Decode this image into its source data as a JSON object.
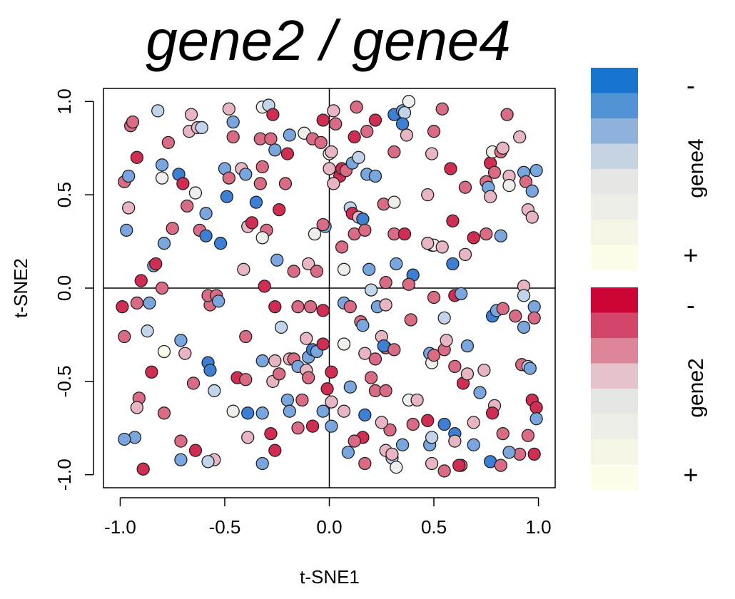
{
  "chart_data": {
    "type": "scatter",
    "title": "gene2 / gene4",
    "xlabel": "t-SNE1",
    "ylabel": "t-SNE2",
    "xlim": [
      -1.08,
      1.08
    ],
    "ylim": [
      -1.07,
      1.07
    ],
    "xticks": [
      "-1.0",
      "-0.5",
      "0.0",
      "0.5",
      "1.0"
    ],
    "xtick_values": [
      -1.0,
      -0.5,
      0.0,
      0.5,
      1.0
    ],
    "yticks": [
      "-1.0",
      "-0.5",
      "0.0",
      "0.5",
      "1.0"
    ],
    "ytick_values": [
      -1.0,
      -0.5,
      0.0,
      0.5,
      1.0
    ],
    "reference_lines": {
      "x": 0,
      "y": 0
    },
    "grid": false,
    "palette": {
      "red_dark": "#d12d52",
      "red_mid": "#da6b84",
      "red_light": "#e8b5c3",
      "blue_dark": "#3d7fd4",
      "blue_mid": "#79a6df",
      "blue_light": "#c2d4ea",
      "neutral": "#eeeeea",
      "cream": "#fafae8"
    },
    "legend": {
      "gene4": {
        "label": "gene4",
        "minus": "-",
        "plus": "+",
        "colors": [
          "#1874cd",
          "#5293d6",
          "#8fb2dc",
          "#c6d3e1",
          "#e6e6e4",
          "#eeeee8",
          "#f5f5e6",
          "#fdfde9"
        ]
      },
      "gene2": {
        "label": "gene2",
        "minus": "-",
        "plus": "+",
        "colors": [
          "#cd0537",
          "#d2466a",
          "#dd8599",
          "#e4c3cb",
          "#e6e6e4",
          "#eeeee8",
          "#f5f5e6",
          "#fdfde9"
        ]
      }
    },
    "points": [
      [
        -0.98,
        0.57,
        "rm"
      ],
      [
        -0.96,
        0.6,
        "bm"
      ],
      [
        -0.95,
        0.87,
        "rm"
      ],
      [
        -0.94,
        0.89,
        "rm"
      ],
      [
        -0.96,
        0.43,
        "rl"
      ],
      [
        -0.97,
        0.31,
        "bm"
      ],
      [
        -0.92,
        0.7,
        "rd"
      ],
      [
        -0.82,
        0.95,
        "bl"
      ],
      [
        -0.8,
        0.66,
        "bm"
      ],
      [
        -0.8,
        0.59,
        "nl"
      ],
      [
        -0.77,
        0.78,
        "rm"
      ],
      [
        -0.72,
        0.61,
        "bd"
      ],
      [
        -0.7,
        0.56,
        "rd"
      ],
      [
        -0.66,
        0.93,
        "rl"
      ],
      [
        -0.67,
        0.84,
        "rl"
      ],
      [
        -0.63,
        0.86,
        "rl"
      ],
      [
        -0.61,
        0.86,
        "bl"
      ],
      [
        -0.64,
        0.51,
        "nl"
      ],
      [
        -0.59,
        0.4,
        "bm"
      ],
      [
        -0.62,
        0.31,
        "rm"
      ],
      [
        -0.59,
        0.28,
        "bd"
      ],
      [
        -0.52,
        0.24,
        "bd"
      ],
      [
        -0.5,
        0.64,
        "bm"
      ],
      [
        -0.48,
        0.59,
        "rm"
      ],
      [
        -0.49,
        0.49,
        "bd"
      ],
      [
        -0.46,
        0.81,
        "rm"
      ],
      [
        -0.46,
        0.89,
        "bm"
      ],
      [
        -0.48,
        0.96,
        "rl"
      ],
      [
        -0.42,
        0.64,
        "rl"
      ],
      [
        -0.4,
        0.61,
        "bm"
      ],
      [
        -0.32,
        0.97,
        "nl"
      ],
      [
        -0.29,
        0.98,
        "bl"
      ],
      [
        -0.27,
        0.93,
        "rd"
      ],
      [
        -0.33,
        0.8,
        "rm"
      ],
      [
        -0.28,
        0.8,
        "rm"
      ],
      [
        -0.26,
        0.74,
        "bm"
      ],
      [
        -0.2,
        0.72,
        "rd"
      ],
      [
        -0.19,
        0.82,
        "bm"
      ],
      [
        -0.12,
        0.83,
        "nl"
      ],
      [
        -0.08,
        0.8,
        "rm"
      ],
      [
        -0.04,
        0.78,
        "rm"
      ],
      [
        -0.03,
        0.9,
        "rd"
      ],
      [
        -0.32,
        0.65,
        "rm"
      ],
      [
        -0.33,
        0.56,
        "rm"
      ],
      [
        -0.35,
        0.46,
        "bd"
      ],
      [
        -0.24,
        0.42,
        "rd"
      ],
      [
        -0.3,
        0.31,
        "rm"
      ],
      [
        -0.39,
        0.33,
        "rl"
      ],
      [
        -0.32,
        0.27,
        "nl"
      ],
      [
        -0.37,
        0.35,
        "rd"
      ],
      [
        -0.25,
        0.15,
        "bm"
      ],
      [
        -0.21,
        0.56,
        "rm"
      ],
      [
        -0.07,
        0.29,
        "nl"
      ],
      [
        -0.02,
        0.33,
        "bm"
      ],
      [
        -0.17,
        0.09,
        "rm"
      ],
      [
        -0.1,
        0.13,
        "rl"
      ],
      [
        -0.06,
        0.09,
        "rm"
      ],
      [
        -0.41,
        0.1,
        "rl"
      ],
      [
        -0.31,
        0.01,
        "rd"
      ],
      [
        -0.75,
        0.32,
        "rm"
      ],
      [
        -0.79,
        0.24,
        "bm"
      ],
      [
        -0.84,
        0.12,
        "bm"
      ],
      [
        -0.83,
        0.13,
        "rd"
      ],
      [
        -0.9,
        0.04,
        "rd"
      ],
      [
        -0.8,
        0.0,
        "rm"
      ],
      [
        -0.68,
        0.44,
        "rm"
      ],
      [
        0.02,
        0.95,
        "rl"
      ],
      [
        0.03,
        0.88,
        "rm"
      ],
      [
        0.0,
        0.72,
        "nl"
      ],
      [
        0.01,
        0.73,
        "rl"
      ],
      [
        0.0,
        0.64,
        "rl"
      ],
      [
        0.05,
        0.6,
        "rd"
      ],
      [
        0.06,
        0.64,
        "rd"
      ],
      [
        0.02,
        0.56,
        "rl"
      ],
      [
        0.08,
        0.63,
        "rm"
      ],
      [
        0.12,
        0.81,
        "rd"
      ],
      [
        0.13,
        0.97,
        "rm"
      ],
      [
        0.18,
        0.84,
        "rm"
      ],
      [
        0.22,
        0.9,
        "rd"
      ],
      [
        0.11,
        0.67,
        "bm"
      ],
      [
        0.14,
        0.7,
        "bl"
      ],
      [
        0.18,
        0.61,
        "bm"
      ],
      [
        0.22,
        0.6,
        "bm"
      ],
      [
        0.1,
        0.43,
        "bl"
      ],
      [
        0.11,
        0.4,
        "rd"
      ],
      [
        0.14,
        0.38,
        "rl"
      ],
      [
        0.16,
        0.37,
        "bd"
      ],
      [
        0.12,
        0.29,
        "rm"
      ],
      [
        0.17,
        0.31,
        "rm"
      ],
      [
        0.06,
        0.22,
        "rm"
      ],
      [
        -0.03,
        0.34,
        "rm"
      ],
      [
        0.07,
        0.1,
        "nl"
      ],
      [
        0.19,
        0.1,
        "bm"
      ],
      [
        0.31,
        0.93,
        "bd"
      ],
      [
        0.35,
        0.95,
        "bm"
      ],
      [
        0.36,
        0.94,
        "bl"
      ],
      [
        0.38,
        1.0,
        "nl"
      ],
      [
        0.35,
        0.88,
        "bd"
      ],
      [
        0.37,
        0.82,
        "rl"
      ],
      [
        0.31,
        0.73,
        "rm"
      ],
      [
        0.47,
        0.5,
        "rl"
      ],
      [
        0.49,
        0.23,
        "rm"
      ],
      [
        0.5,
        0.23,
        "nl"
      ],
      [
        0.54,
        0.22,
        "rl"
      ],
      [
        0.47,
        0.24,
        "rl"
      ],
      [
        0.31,
        0.29,
        "rm"
      ],
      [
        0.36,
        0.29,
        "rd"
      ],
      [
        0.32,
        0.13,
        "bm"
      ],
      [
        0.4,
        0.07,
        "bd"
      ],
      [
        0.38,
        0.02,
        "rm"
      ],
      [
        0.27,
        0.03,
        "rm"
      ],
      [
        0.26,
        0.45,
        "rm"
      ],
      [
        0.31,
        0.46,
        "nl"
      ],
      [
        0.5,
        0.84,
        "rm"
      ],
      [
        0.54,
        0.96,
        "rm"
      ],
      [
        0.49,
        0.72,
        "rl"
      ],
      [
        0.58,
        0.64,
        "rd"
      ],
      [
        0.59,
        0.36,
        "rd"
      ],
      [
        0.59,
        0.13,
        "bd"
      ],
      [
        0.65,
        0.54,
        "rm"
      ],
      [
        0.65,
        0.18,
        "rl"
      ],
      [
        0.69,
        0.27,
        "rd"
      ],
      [
        0.75,
        0.57,
        "rm"
      ],
      [
        0.76,
        0.54,
        "bm"
      ],
      [
        0.77,
        0.49,
        "rl"
      ],
      [
        0.77,
        0.67,
        "rd"
      ],
      [
        0.78,
        0.73,
        "nl"
      ],
      [
        0.79,
        0.62,
        "rm"
      ],
      [
        0.82,
        0.73,
        "rm"
      ],
      [
        0.83,
        0.75,
        "rl"
      ],
      [
        0.85,
        0.93,
        "rm"
      ],
      [
        0.86,
        0.6,
        "rl"
      ],
      [
        0.86,
        0.55,
        "nl"
      ],
      [
        0.91,
        0.81,
        "rl"
      ],
      [
        0.93,
        0.62,
        "bm"
      ],
      [
        0.94,
        0.57,
        "rm"
      ],
      [
        0.95,
        0.42,
        "rl"
      ],
      [
        0.97,
        0.38,
        "rl"
      ],
      [
        0.97,
        0.52,
        "bm"
      ],
      [
        0.99,
        0.63,
        "bm"
      ],
      [
        0.75,
        0.29,
        "rm"
      ],
      [
        0.82,
        0.28,
        "bm"
      ],
      [
        0.93,
        0.01,
        "rl"
      ],
      [
        -0.99,
        -0.1,
        "rd"
      ],
      [
        -0.92,
        -0.08,
        "rm"
      ],
      [
        -0.86,
        -0.08,
        "bm"
      ],
      [
        -0.87,
        -0.23,
        "bl"
      ],
      [
        -0.98,
        -0.26,
        "rm"
      ],
      [
        -0.79,
        -0.34,
        "cream"
      ],
      [
        -0.71,
        -0.28,
        "bm"
      ],
      [
        -0.69,
        -0.35,
        "rl"
      ],
      [
        -0.85,
        -0.45,
        "rd"
      ],
      [
        -0.65,
        -0.51,
        "rm"
      ],
      [
        -0.58,
        -0.4,
        "bd"
      ],
      [
        -0.57,
        -0.44,
        "bd"
      ],
      [
        -0.55,
        -0.55,
        "bl"
      ],
      [
        -0.57,
        -0.09,
        "rm"
      ],
      [
        -0.58,
        -0.04,
        "rm"
      ],
      [
        -0.54,
        -0.04,
        "rm"
      ],
      [
        -0.53,
        -0.07,
        "bm"
      ],
      [
        -0.4,
        -0.26,
        "rm"
      ],
      [
        -0.44,
        -0.48,
        "rd"
      ],
      [
        -0.4,
        -0.49,
        "rm"
      ],
      [
        -0.32,
        -0.39,
        "bm"
      ],
      [
        -0.26,
        -0.39,
        "rl"
      ],
      [
        -0.27,
        -0.5,
        "rl"
      ],
      [
        -0.24,
        -0.46,
        "rm"
      ],
      [
        -0.26,
        -0.1,
        "rd"
      ],
      [
        -0.23,
        -0.21,
        "bl"
      ],
      [
        -0.19,
        -0.38,
        "rl"
      ],
      [
        -0.17,
        -0.38,
        "rm"
      ],
      [
        -0.15,
        -0.42,
        "bm"
      ],
      [
        -0.11,
        -0.44,
        "rl"
      ],
      [
        -0.11,
        -0.27,
        "rl"
      ],
      [
        -0.1,
        -0.37,
        "bm"
      ],
      [
        -0.08,
        -0.33,
        "bd"
      ],
      [
        -0.06,
        -0.34,
        "bm"
      ],
      [
        -0.03,
        -0.3,
        "rd"
      ],
      [
        -0.09,
        -0.1,
        "rm"
      ],
      [
        -0.03,
        -0.12,
        "rd"
      ],
      [
        -0.15,
        -0.1,
        "rm"
      ],
      [
        -0.1,
        -0.48,
        "rm"
      ],
      [
        0.01,
        -0.45,
        "rd"
      ],
      [
        -0.01,
        -0.54,
        "rd"
      ],
      [
        0.07,
        -0.08,
        "bm"
      ],
      [
        0.1,
        -0.1,
        "rm"
      ],
      [
        0.15,
        -0.18,
        "rm"
      ],
      [
        0.16,
        -0.2,
        "bm"
      ],
      [
        0.07,
        -0.3,
        "nl"
      ],
      [
        0.17,
        -0.35,
        "rl"
      ],
      [
        0.22,
        -0.38,
        "rm"
      ],
      [
        0.2,
        -0.48,
        "rm"
      ],
      [
        0.22,
        -0.55,
        "rm"
      ],
      [
        0.1,
        -0.53,
        "bm"
      ],
      [
        0.23,
        -0.1,
        "bm"
      ],
      [
        0.27,
        -0.09,
        "rl"
      ],
      [
        0.2,
        -0.01,
        "bl"
      ],
      [
        0.25,
        -0.26,
        "rl"
      ],
      [
        0.27,
        -0.32,
        "rm"
      ],
      [
        0.26,
        -0.31,
        "bd"
      ],
      [
        0.31,
        -0.33,
        "rm"
      ],
      [
        0.27,
        -0.55,
        "rm"
      ],
      [
        0.39,
        -0.17,
        "rm"
      ],
      [
        0.38,
        -0.6,
        "nl"
      ],
      [
        0.42,
        -0.6,
        "rl"
      ],
      [
        0.48,
        -0.35,
        "bm"
      ],
      [
        0.49,
        -0.4,
        "nl"
      ],
      [
        0.5,
        -0.36,
        "rm"
      ],
      [
        0.55,
        -0.33,
        "rm"
      ],
      [
        0.55,
        -0.16,
        "bl"
      ],
      [
        0.56,
        -0.28,
        "rl"
      ],
      [
        0.5,
        -0.05,
        "rm"
      ],
      [
        0.6,
        -0.04,
        "rd"
      ],
      [
        0.63,
        -0.03,
        "bm"
      ],
      [
        0.6,
        -0.42,
        "rm"
      ],
      [
        0.64,
        -0.51,
        "rd"
      ],
      [
        0.66,
        -0.46,
        "rl"
      ],
      [
        0.66,
        -0.31,
        "bm"
      ],
      [
        0.72,
        -0.56,
        "bm"
      ],
      [
        0.74,
        -0.44,
        "rl"
      ],
      [
        0.78,
        -0.15,
        "bd"
      ],
      [
        0.8,
        -0.12,
        "bm"
      ],
      [
        0.83,
        -0.11,
        "rm"
      ],
      [
        0.89,
        -0.15,
        "rm"
      ],
      [
        0.93,
        -0.04,
        "bl"
      ],
      [
        0.93,
        -0.21,
        "bm"
      ],
      [
        0.98,
        -0.1,
        "bm"
      ],
      [
        0.98,
        -0.16,
        "rm"
      ],
      [
        0.92,
        -0.41,
        "rm"
      ],
      [
        0.95,
        -0.42,
        "bl"
      ],
      [
        0.96,
        -0.43,
        "bm"
      ],
      [
        0.97,
        -0.6,
        "rd"
      ],
      [
        0.99,
        -0.64,
        "rd"
      ],
      [
        0.99,
        -0.7,
        "bm"
      ],
      [
        0.95,
        -0.79,
        "rm"
      ],
      [
        0.98,
        -0.89,
        "rd"
      ],
      [
        0.91,
        -0.89,
        "rm"
      ],
      [
        0.86,
        -0.88,
        "bm"
      ],
      [
        0.83,
        -0.78,
        "rm"
      ],
      [
        0.79,
        -0.63,
        "rl"
      ],
      [
        0.78,
        -0.67,
        "rd"
      ],
      [
        0.77,
        -0.93,
        "bd"
      ],
      [
        0.82,
        -0.95,
        "rm"
      ],
      [
        0.69,
        -0.72,
        "rl"
      ],
      [
        0.69,
        -0.84,
        "bm"
      ],
      [
        0.63,
        -0.95,
        "rm"
      ],
      [
        0.62,
        -0.95,
        "rd"
      ],
      [
        0.6,
        -0.78,
        "bd"
      ],
      [
        0.6,
        -0.82,
        "rl"
      ],
      [
        0.55,
        -0.73,
        "bd"
      ],
      [
        0.55,
        -0.98,
        "rm"
      ],
      [
        0.48,
        -0.84,
        "bm"
      ],
      [
        0.49,
        -0.8,
        "bl"
      ],
      [
        0.49,
        -0.94,
        "rl"
      ],
      [
        0.47,
        -0.71,
        "rd"
      ],
      [
        0.4,
        -0.73,
        "rm"
      ],
      [
        0.35,
        -0.84,
        "bm"
      ],
      [
        0.3,
        -0.91,
        "bl"
      ],
      [
        0.32,
        -0.96,
        "nl"
      ],
      [
        0.27,
        -0.87,
        "rl"
      ],
      [
        0.3,
        -0.89,
        "rl"
      ],
      [
        0.29,
        -0.76,
        "rm"
      ],
      [
        0.25,
        -0.72,
        "rl"
      ],
      [
        0.16,
        -0.8,
        "rd"
      ],
      [
        0.17,
        -0.94,
        "rm"
      ],
      [
        0.12,
        -0.82,
        "rm"
      ],
      [
        0.09,
        -0.88,
        "bm"
      ],
      [
        0.17,
        -0.68,
        "bd"
      ],
      [
        0.07,
        -0.66,
        "rl"
      ],
      [
        0.01,
        -0.74,
        "bm"
      ],
      [
        0.01,
        -0.61,
        "rl"
      ],
      [
        -0.03,
        -0.66,
        "bm"
      ],
      [
        -0.08,
        -0.74,
        "rd"
      ],
      [
        -0.15,
        -0.75,
        "rm"
      ],
      [
        -0.2,
        -0.6,
        "bm"
      ],
      [
        -0.19,
        -0.66,
        "bm"
      ],
      [
        -0.13,
        -0.6,
        "rm"
      ],
      [
        -0.28,
        -0.78,
        "rd"
      ],
      [
        -0.32,
        -0.67,
        "bm"
      ],
      [
        -0.39,
        -0.67,
        "bd"
      ],
      [
        -0.46,
        -0.66,
        "nl"
      ],
      [
        -0.39,
        -0.8,
        "rl"
      ],
      [
        -0.32,
        -0.94,
        "bm"
      ],
      [
        -0.26,
        -0.87,
        "rd"
      ],
      [
        -0.55,
        -0.92,
        "rl"
      ],
      [
        -0.58,
        -0.93,
        "bl"
      ],
      [
        -0.64,
        -0.87,
        "rd"
      ],
      [
        -0.71,
        -0.82,
        "rm"
      ],
      [
        -0.71,
        -0.92,
        "bm"
      ],
      [
        -0.79,
        -0.67,
        "rm"
      ],
      [
        -0.91,
        -0.59,
        "rm"
      ],
      [
        -0.92,
        -0.64,
        "rl"
      ],
      [
        -0.93,
        -0.8,
        "bm"
      ],
      [
        -0.98,
        -0.81,
        "bm"
      ],
      [
        -0.89,
        -0.97,
        "rd"
      ]
    ]
  }
}
